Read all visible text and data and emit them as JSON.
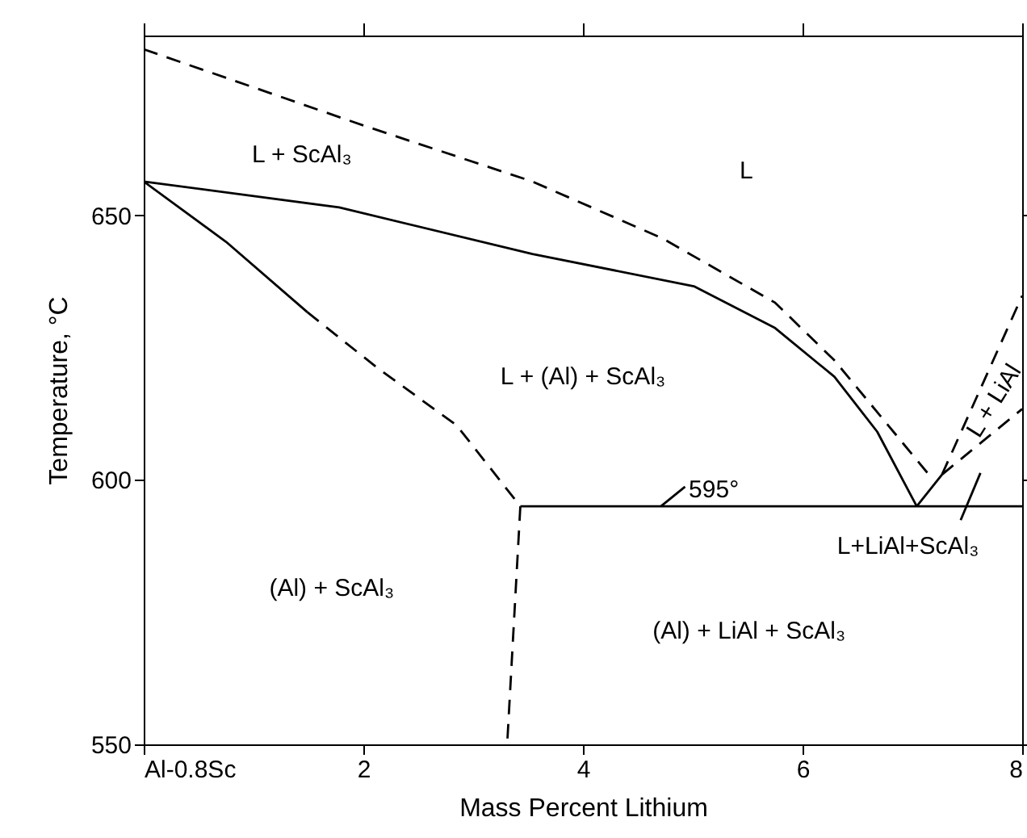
{
  "chart_data": {
    "type": "line",
    "xlabel": "Mass Percent Lithium",
    "ylabel": "Temperature, °C",
    "xlim": [
      0,
      8
    ],
    "xticks": [
      {
        "value": 0,
        "label": "Al-0.8Sc"
      },
      2,
      4,
      6,
      8
    ],
    "ylim": [
      550,
      684
    ],
    "yticks": [
      550,
      600,
      650
    ],
    "grid": false,
    "marker": "none",
    "series": [
      {
        "color": "#000000",
        "line_style": "dashed",
        "x": [
          0,
          2.0,
          3.54,
          4.72,
          5.75,
          6.29,
          6.74,
          7.19
        ],
        "values": [
          681.4,
          667,
          656.4,
          645.7,
          633.5,
          622.6,
          611.3,
          600
        ]
      },
      {
        "color": "#000000",
        "line_style": "solid",
        "x": [
          0,
          1.78,
          3.54,
          5.01,
          5.75,
          6.29,
          6.68,
          7.04
        ],
        "values": [
          656.4,
          651.5,
          642.7,
          636.6,
          628.7,
          619.5,
          609.1,
          595
        ]
      },
      {
        "color": "#000000",
        "line_style": "solid",
        "x": [
          0,
          0.75,
          1.49
        ],
        "values": [
          656.4,
          645,
          631.7
        ]
      },
      {
        "color": "#000000",
        "line_style": "dashed",
        "x": [
          1.49,
          2.12,
          2.85,
          3.43
        ],
        "values": [
          631.7,
          621.3,
          610.3,
          595
        ]
      },
      {
        "color": "#000000",
        "line_style": "dashed",
        "x": [
          3.43,
          3.31
        ],
        "values": [
          595,
          550
        ]
      },
      {
        "color": "#000000",
        "line_style": "solid",
        "x": [
          3.43,
          8
        ],
        "values": [
          595,
          595
        ]
      },
      {
        "color": "#000000",
        "line_style": "solid",
        "x": [
          7.04,
          7.27
        ],
        "values": [
          595,
          601
        ]
      },
      {
        "color": "#000000",
        "line_style": "dashed",
        "x": [
          7.27,
          8
        ],
        "values": [
          601,
          634.8
        ]
      },
      {
        "color": "#000000",
        "line_style": "dashed",
        "x": [
          7.27,
          8
        ],
        "values": [
          601,
          613.4
        ]
      },
      {
        "color": "#000000",
        "line_style": "solid",
        "x": [
          4.71,
          4.93
        ],
        "values": [
          595,
          598.7
        ]
      },
      {
        "color": "#000000",
        "line_style": "solid",
        "x": [
          7.44,
          7.62
        ],
        "values": [
          592.4,
          601.3
        ]
      }
    ],
    "annotations": [
      "L + ScAl₃",
      "L",
      "L + (Al) + ScAl₃",
      "(Al) + ScAl₃",
      "(Al) + LiAl + ScAl₃",
      "L+LiAl+ScAl₃",
      "L + LiAl",
      "595°"
    ]
  }
}
